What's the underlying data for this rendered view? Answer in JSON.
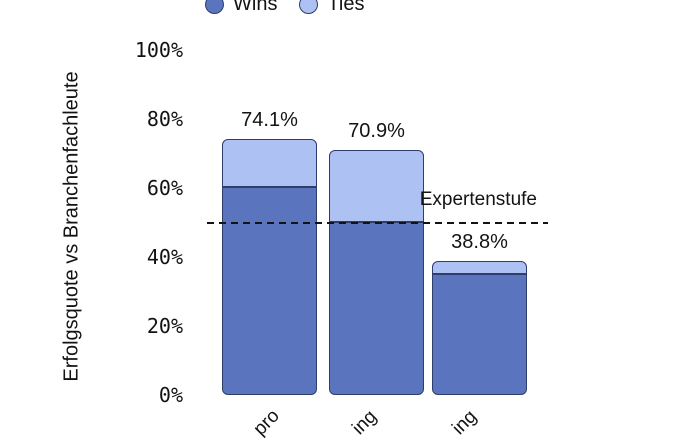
{
  "colors": {
    "wins_fill": "#5B74BE",
    "ties_fill": "#ADC1F3",
    "bar_border": "#2E3D6C",
    "text": "#131313",
    "reference_line": "#131313"
  },
  "legend": {
    "items": [
      {
        "label": "Wins",
        "color": "#5B74BE"
      },
      {
        "label": "Ties",
        "color": "#ADC1F3"
      }
    ]
  },
  "chart_data": {
    "type": "bar",
    "stacked": true,
    "title": "",
    "ylabel": "Erfolgsquote vs Branchenfachleute",
    "xlabel": "",
    "ylim": [
      0,
      100
    ],
    "grid": false,
    "legend_position": "top-center",
    "ytick_pcts": [
      0,
      20,
      40,
      60,
      80,
      100
    ],
    "ytick_labels": [
      "0%",
      "20%",
      "40%",
      "60%",
      "80%",
      "100%"
    ],
    "categories_visible_fragments": [
      "pro",
      "ing",
      "ing"
    ],
    "series": [
      {
        "name": "Wins",
        "values": [
          60.3,
          50.0,
          35.0
        ]
      },
      {
        "name": "Ties",
        "values": [
          13.8,
          20.9,
          3.8
        ]
      }
    ],
    "totals": [
      74.1,
      70.9,
      38.8
    ],
    "total_labels": [
      "74.1%",
      "70.9%",
      "38.8%"
    ],
    "reference_line": {
      "value": 50,
      "label": "Expertenstufe"
    }
  }
}
